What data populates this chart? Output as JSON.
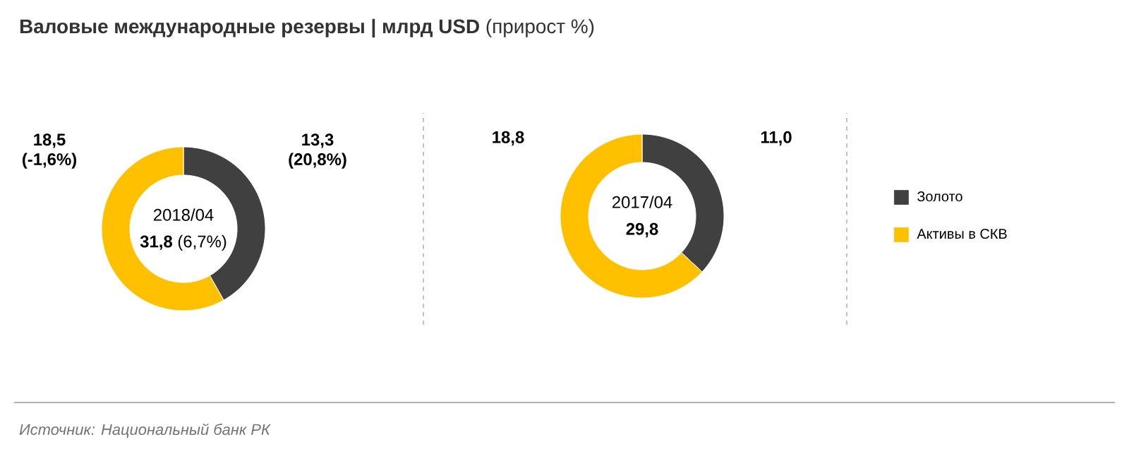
{
  "chart_data": [
    {
      "type": "donut",
      "title": "**Валовые международные резервы  |  млрд USD** (прирост %)",
      "categories": [
        null,
        null
      ],
      "values": [
        13.3,
        18.5
      ],
      "colors": [
        "#404040",
        "#ffc000"
      ],
      "value_labels": [
        "13,3 (20,8%)",
        "18,5 (-1,6%)"
      ],
      "annotations": [
        "2018/04",
        "**31,8** (6,7%)",
        "Источник:  Национальный банк РК"
      ]
    },
    {
      "type": "donut",
      "categories": [
        "Золото",
        "Активы в СКВ"
      ],
      "values": [
        11.0,
        18.8
      ],
      "colors": [
        "#404040",
        "#ffc000"
      ],
      "value_labels": [
        "11,0",
        "18,8"
      ],
      "annotations": [
        "2017/04",
        "**29,8**"
      ],
      "legend": "right"
    }
  ]
}
